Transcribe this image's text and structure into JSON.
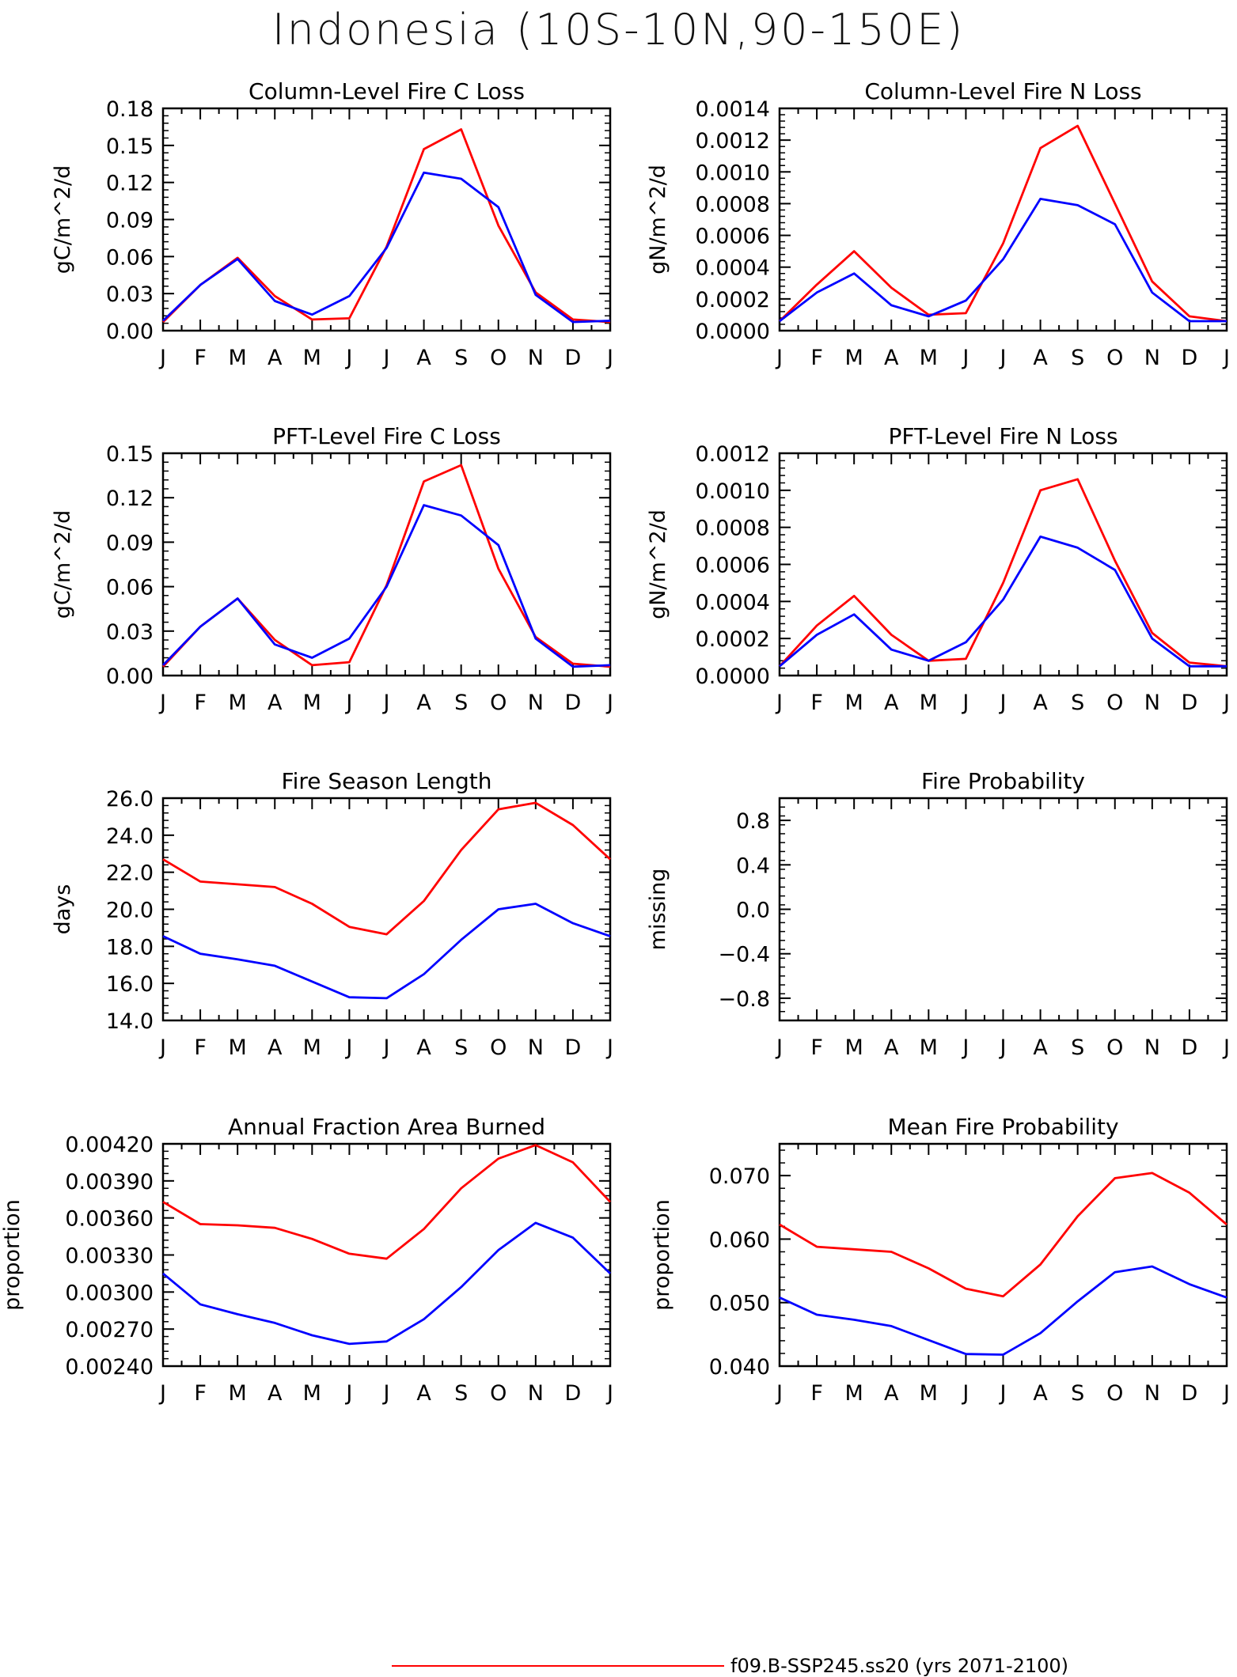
{
  "title": "Indonesia (10S-10N,90-150E)",
  "colors": {
    "series1": "#ff0000",
    "series2": "#0000ff"
  },
  "legend": {
    "series1_label": "f09.B-SSP245.ss20 (yrs 2071-2100)"
  },
  "chart_data": [
    {
      "type": "line",
      "title": "Column-Level Fire C Loss",
      "ylabel": "gC/m^2/d",
      "categories": [
        "J",
        "F",
        "M",
        "A",
        "M",
        "J",
        "J",
        "A",
        "S",
        "O",
        "N",
        "D",
        "J"
      ],
      "ylim": [
        0,
        0.18
      ],
      "yticks": [
        "0.00",
        "0.03",
        "0.06",
        "0.09",
        "0.12",
        "0.15",
        "0.18"
      ],
      "series": [
        {
          "color": "#ff0000",
          "values": [
            0.007,
            0.037,
            0.059,
            0.028,
            0.009,
            0.01,
            0.068,
            0.147,
            0.163,
            0.085,
            0.031,
            0.009,
            0.007
          ]
        },
        {
          "color": "#0000ff",
          "values": [
            0.008,
            0.037,
            0.058,
            0.024,
            0.013,
            0.028,
            0.067,
            0.128,
            0.123,
            0.1,
            0.029,
            0.007,
            0.008
          ]
        }
      ]
    },
    {
      "type": "line",
      "title": "Column-Level Fire N Loss",
      "ylabel": "gN/m^2/d",
      "categories": [
        "J",
        "F",
        "M",
        "A",
        "M",
        "J",
        "J",
        "A",
        "S",
        "O",
        "N",
        "D",
        "J"
      ],
      "ylim": [
        0,
        0.0014
      ],
      "yticks": [
        "0.0000",
        "0.0002",
        "0.0004",
        "0.0006",
        "0.0008",
        "0.0010",
        "0.0012",
        "0.0014"
      ],
      "series": [
        {
          "color": "#ff0000",
          "values": [
            6e-05,
            0.00029,
            0.0005,
            0.00027,
            0.0001,
            0.00011,
            0.00055,
            0.00115,
            0.00129,
            0.0008,
            0.00031,
            9e-05,
            6e-05
          ]
        },
        {
          "color": "#0000ff",
          "values": [
            6e-05,
            0.00024,
            0.00036,
            0.00016,
            9e-05,
            0.00019,
            0.00045,
            0.00083,
            0.00079,
            0.00067,
            0.00024,
            6e-05,
            6e-05
          ]
        }
      ]
    },
    {
      "type": "line",
      "title": "PFT-Level Fire C Loss",
      "ylabel": "gC/m^2/d",
      "categories": [
        "J",
        "F",
        "M",
        "A",
        "M",
        "J",
        "J",
        "A",
        "S",
        "O",
        "N",
        "D",
        "J"
      ],
      "ylim": [
        0,
        0.15
      ],
      "yticks": [
        "0.00",
        "0.03",
        "0.06",
        "0.09",
        "0.12",
        "0.15"
      ],
      "series": [
        {
          "color": "#ff0000",
          "values": [
            0.006,
            0.033,
            0.052,
            0.024,
            0.007,
            0.009,
            0.061,
            0.131,
            0.142,
            0.072,
            0.026,
            0.008,
            0.006
          ]
        },
        {
          "color": "#0000ff",
          "values": [
            0.007,
            0.033,
            0.052,
            0.021,
            0.012,
            0.025,
            0.06,
            0.115,
            0.108,
            0.088,
            0.025,
            0.006,
            0.007
          ]
        }
      ]
    },
    {
      "type": "line",
      "title": "PFT-Level Fire N Loss",
      "ylabel": "gN/m^2/d",
      "categories": [
        "J",
        "F",
        "M",
        "A",
        "M",
        "J",
        "J",
        "A",
        "S",
        "O",
        "N",
        "D",
        "J"
      ],
      "ylim": [
        0,
        0.0012
      ],
      "yticks": [
        "0.0000",
        "0.0002",
        "0.0004",
        "0.0006",
        "0.0008",
        "0.0010",
        "0.0012"
      ],
      "series": [
        {
          "color": "#ff0000",
          "values": [
            5e-05,
            0.00027,
            0.00043,
            0.00022,
            8e-05,
            9e-05,
            0.0005,
            0.001,
            0.00106,
            0.00062,
            0.00023,
            7e-05,
            5e-05
          ]
        },
        {
          "color": "#0000ff",
          "values": [
            5e-05,
            0.00022,
            0.00033,
            0.00014,
            8e-05,
            0.00018,
            0.00041,
            0.00075,
            0.00069,
            0.00057,
            0.0002,
            5e-05,
            5e-05
          ]
        }
      ]
    },
    {
      "type": "line",
      "title": "Fire Season Length",
      "ylabel": "days",
      "categories": [
        "J",
        "F",
        "M",
        "A",
        "M",
        "J",
        "J",
        "A",
        "S",
        "O",
        "N",
        "D",
        "J"
      ],
      "ylim": [
        14,
        26
      ],
      "yticks": [
        "14.0",
        "16.0",
        "18.0",
        "20.0",
        "22.0",
        "24.0",
        "26.0"
      ],
      "series": [
        {
          "color": "#ff0000",
          "values": [
            22.7,
            21.5,
            21.35,
            21.2,
            20.3,
            19.05,
            18.65,
            20.45,
            23.2,
            25.4,
            25.75,
            24.55,
            22.7
          ]
        },
        {
          "color": "#0000ff",
          "values": [
            18.55,
            17.6,
            17.3,
            16.95,
            16.1,
            15.25,
            15.2,
            16.5,
            18.35,
            20.0,
            20.3,
            19.25,
            18.55
          ]
        }
      ]
    },
    {
      "type": "line",
      "title": "Fire Probability",
      "ylabel": "missing",
      "categories": [
        "J",
        "F",
        "M",
        "A",
        "M",
        "J",
        "J",
        "A",
        "S",
        "O",
        "N",
        "D",
        "J"
      ],
      "ylim": [
        -1.0,
        1.0
      ],
      "yticks": [
        "-0.8",
        "-0.4",
        "0.0",
        "0.4",
        "0.8"
      ],
      "series": []
    },
    {
      "type": "line",
      "title": "Annual Fraction Area Burned",
      "ylabel": "proportion",
      "categories": [
        "J",
        "F",
        "M",
        "A",
        "M",
        "J",
        "J",
        "A",
        "S",
        "O",
        "N",
        "D",
        "J"
      ],
      "ylim": [
        0.0024,
        0.0042
      ],
      "yticks": [
        "0.00240",
        "0.00270",
        "0.00300",
        "0.00330",
        "0.00360",
        "0.00390",
        "0.00420"
      ],
      "series": [
        {
          "color": "#ff0000",
          "values": [
            0.00373,
            0.00355,
            0.00354,
            0.00352,
            0.00343,
            0.00331,
            0.00327,
            0.00351,
            0.00384,
            0.00408,
            0.00419,
            0.00405,
            0.00373
          ]
        },
        {
          "color": "#0000ff",
          "values": [
            0.00315,
            0.0029,
            0.00282,
            0.00275,
            0.00265,
            0.00258,
            0.0026,
            0.00278,
            0.00304,
            0.00334,
            0.00356,
            0.00344,
            0.00315
          ]
        }
      ]
    },
    {
      "type": "line",
      "title": "Mean Fire Probability",
      "ylabel": "proportion",
      "categories": [
        "J",
        "F",
        "M",
        "A",
        "M",
        "J",
        "J",
        "A",
        "S",
        "O",
        "N",
        "D",
        "J"
      ],
      "ylim": [
        0.04,
        0.075
      ],
      "yticks": [
        "0.040",
        "0.050",
        "0.060",
        "0.070"
      ],
      "series": [
        {
          "color": "#ff0000",
          "values": [
            0.0623,
            0.0588,
            0.0584,
            0.058,
            0.0554,
            0.0522,
            0.051,
            0.056,
            0.0636,
            0.0696,
            0.0704,
            0.0673,
            0.0623
          ]
        },
        {
          "color": "#0000ff",
          "values": [
            0.0508,
            0.0481,
            0.0473,
            0.0463,
            0.0441,
            0.0419,
            0.0418,
            0.0452,
            0.0502,
            0.0548,
            0.0557,
            0.0529,
            0.0508
          ]
        }
      ]
    }
  ]
}
